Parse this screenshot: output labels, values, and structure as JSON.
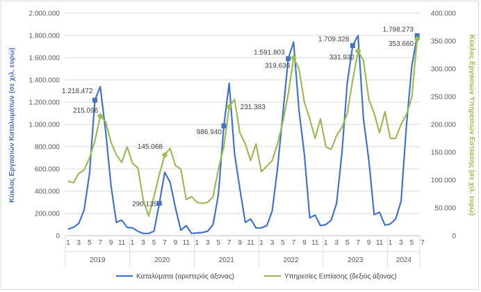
{
  "chart_data": {
    "type": "line",
    "y_left_label": "Κύκλος Εργασιών Καταλυμάτων (σε χιλ. ευρώ)",
    "y_right_label": "Κύκλος Εργασιών Υπηρεσιών Εστίασης (σε χιλ. ευρώ)",
    "y_left_range": [
      0,
      2000000
    ],
    "y_right_range": [
      0,
      400000
    ],
    "y_left_ticks": [
      "0",
      "200.000",
      "400.000",
      "600.000",
      "800.000",
      "1.000.000",
      "1.200.000",
      "1.400.000",
      "1.600.000",
      "1.800.000",
      "2.000.000"
    ],
    "y_right_ticks": [
      "0",
      "50.000",
      "100.000",
      "150.000",
      "200.000",
      "250.000",
      "300.000",
      "350.000",
      "400.000"
    ],
    "month_ticks": [
      "1",
      "3",
      "5",
      "7",
      "9",
      "11",
      "1",
      "3",
      "5",
      "7",
      "9",
      "11",
      "1",
      "3",
      "5",
      "7",
      "9",
      "11",
      "1",
      "3",
      "5",
      "7",
      "9",
      "11",
      "1",
      "3",
      "5",
      "7",
      "9",
      "11",
      "1",
      "3",
      "5",
      "7"
    ],
    "years": [
      "2019",
      "2020",
      "2021",
      "2022",
      "2023",
      "2024"
    ],
    "grid": true,
    "legend_position": "bottom",
    "series": [
      {
        "name": "Καταλύματα (αριστερός άξονας)",
        "color": "#4472c4",
        "axis": "left",
        "values": [
          60000,
          75000,
          110000,
          230000,
          560000,
          1218472,
          1340000,
          940000,
          450000,
          120000,
          140000,
          75000,
          70000,
          40000,
          20000,
          20000,
          40000,
          290135,
          570000,
          480000,
          250000,
          50000,
          90000,
          20000,
          25000,
          28000,
          40000,
          100000,
          370000,
          986940,
          1370000,
          740000,
          420000,
          120000,
          150000,
          70000,
          70000,
          90000,
          220000,
          600000,
          1100000,
          1591803,
          1740000,
          1130000,
          730000,
          160000,
          185000,
          90000,
          100000,
          140000,
          290000,
          750000,
          1380000,
          1709328,
          1800000,
          1050000,
          680000,
          190000,
          210000,
          95000,
          105000,
          150000,
          310000,
          990000,
          1520000,
          1798273
        ]
      },
      {
        "name": "Υπηρεσίες Εστίασης (δεξιός άξονας)",
        "color": "#9bbb59",
        "axis": "right",
        "values": [
          98000,
          95000,
          112000,
          118000,
          140000,
          170000,
          215096,
          205000,
          168000,
          145000,
          132000,
          160000,
          130000,
          122000,
          65000,
          35000,
          70000,
          110000,
          145068,
          157000,
          126000,
          120000,
          65000,
          70000,
          60000,
          58000,
          60000,
          70000,
          120000,
          160000,
          231383,
          245000,
          185000,
          165000,
          135000,
          165000,
          115000,
          125000,
          135000,
          165000,
          205000,
          255000,
          319636,
          300000,
          240000,
          210000,
          175000,
          210000,
          160000,
          155000,
          180000,
          195000,
          220000,
          280000,
          331932,
          315000,
          245000,
          220000,
          185000,
          223000,
          175000,
          175000,
          200000,
          218000,
          248000,
          353660
        ]
      }
    ],
    "annotations": [
      {
        "series": 0,
        "index": 5,
        "label": "1.218.472"
      },
      {
        "series": 0,
        "index": 17,
        "label": "290.135"
      },
      {
        "series": 0,
        "index": 29,
        "label": "986.940"
      },
      {
        "series": 0,
        "index": 41,
        "label": "1.591.803"
      },
      {
        "series": 0,
        "index": 53,
        "label": "1.709.328"
      },
      {
        "series": 0,
        "index": 65,
        "label": "1.798.273"
      },
      {
        "series": 1,
        "index": 6,
        "label": "215.096"
      },
      {
        "series": 1,
        "index": 18,
        "label": "145.068"
      },
      {
        "series": 1,
        "index": 30,
        "label": "231.383"
      },
      {
        "series": 1,
        "index": 42,
        "label": "319.636"
      },
      {
        "series": 1,
        "index": 54,
        "label": "331.932"
      },
      {
        "series": 1,
        "index": 65,
        "label": "353.660"
      }
    ]
  }
}
